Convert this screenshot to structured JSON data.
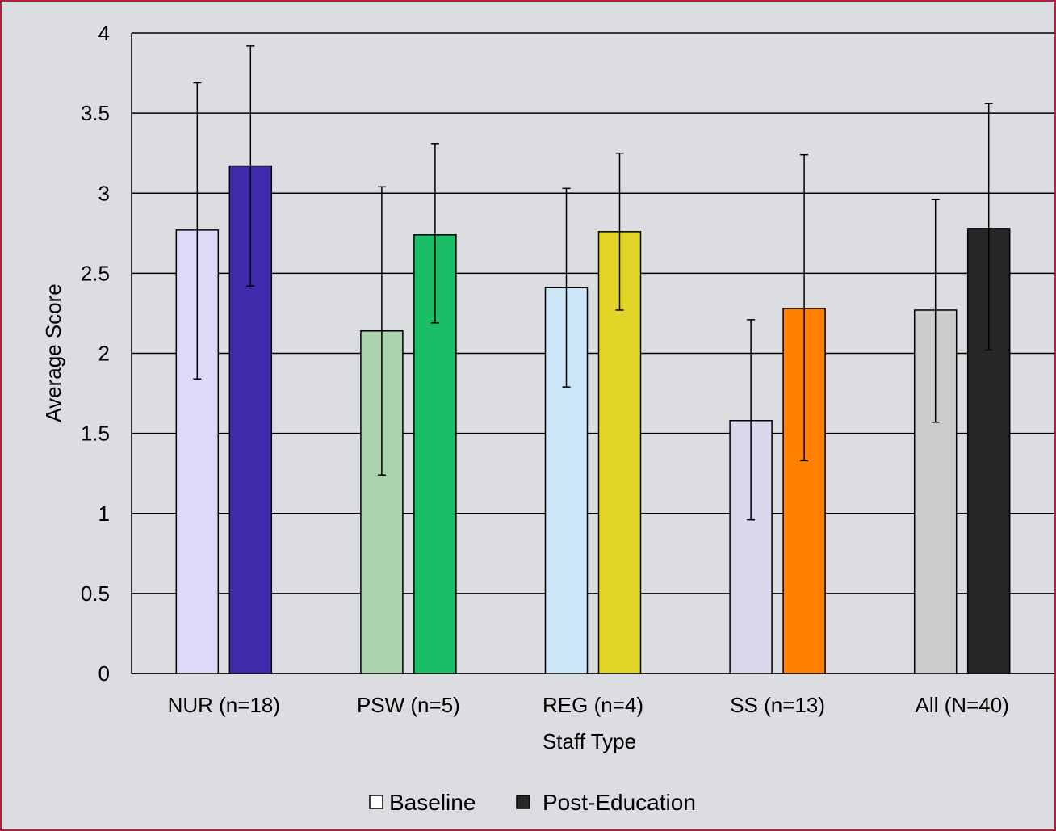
{
  "chart_data": {
    "type": "bar",
    "title": "",
    "xlabel": "Staff Type",
    "ylabel": "Average Score",
    "ylim": [
      0,
      4
    ],
    "yticks": [
      "0",
      "0.5",
      "1",
      "1.5",
      "2",
      "2.5",
      "3",
      "3.5",
      "4"
    ],
    "grid": true,
    "legend_position": "bottom",
    "categories": [
      "NUR (n=18)",
      "PSW (n=5)",
      "REG (n=4)",
      "SS (n=13)",
      "All (N=40)"
    ],
    "series": [
      {
        "name": "Baseline",
        "values": [
          2.77,
          2.14,
          2.41,
          1.58,
          2.27
        ],
        "error_low": [
          1.84,
          1.24,
          1.79,
          0.96,
          1.57
        ],
        "error_high": [
          3.69,
          3.04,
          3.03,
          2.21,
          2.96
        ],
        "colors": [
          "#dcdaf8",
          "#a9d2ad",
          "#cce6f8",
          "#dcd6ec",
          "#cbcbcb"
        ]
      },
      {
        "name": "Post-Education",
        "values": [
          3.17,
          2.74,
          2.76,
          2.28,
          2.78
        ],
        "error_low": [
          2.42,
          2.19,
          2.27,
          1.33,
          2.02
        ],
        "error_high": [
          3.92,
          3.31,
          3.25,
          3.24,
          3.56
        ],
        "colors": [
          "#3e2aab",
          "#1bbd66",
          "#e1d426",
          "#ff7f00",
          "#262626"
        ]
      }
    ],
    "legend": [
      {
        "label": "Baseline",
        "swatch": "#ffffff"
      },
      {
        "label": "Post-Education",
        "swatch": "#262626"
      }
    ]
  }
}
